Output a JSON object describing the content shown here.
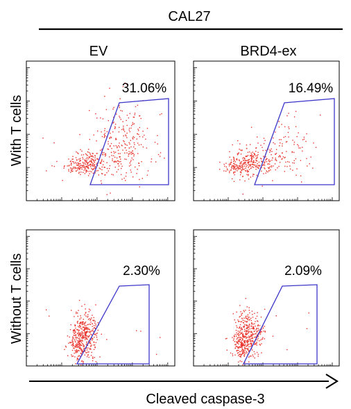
{
  "header": {
    "cell_line": "CAL27"
  },
  "columns": [
    {
      "label": "EV"
    },
    {
      "label": "BRD4-ex"
    }
  ],
  "rows": [
    {
      "label": "With T cells"
    },
    {
      "label": "Without T cells"
    }
  ],
  "xaxis": {
    "label": "Cleaved caspase-3"
  },
  "colors": {
    "dots": "#e8322b",
    "gate": "#3b35c9",
    "frame": "#000000"
  },
  "chart_data": {
    "type": "scatter",
    "title": "",
    "xlabel": "Cleaved caspase-3",
    "ylabel": "",
    "grid": false,
    "legend": "none",
    "panels": [
      {
        "name": "With T cells / EV",
        "row": "With T cells",
        "column": "EV",
        "gated_percent": "31.06%",
        "gated_value": 31.06
      },
      {
        "name": "With T cells / BRD4-ex",
        "row": "With T cells",
        "column": "BRD4-ex",
        "gated_percent": "16.49%",
        "gated_value": 16.49
      },
      {
        "name": "Without T cells / EV",
        "row": "Without T cells",
        "column": "EV",
        "gated_percent": "2.30%",
        "gated_value": 2.3
      },
      {
        "name": "Without T cells / BRD4-ex",
        "row": "Without T cells",
        "column": "BRD4-ex",
        "gated_percent": "2.09%",
        "gated_value": 2.09
      }
    ]
  }
}
